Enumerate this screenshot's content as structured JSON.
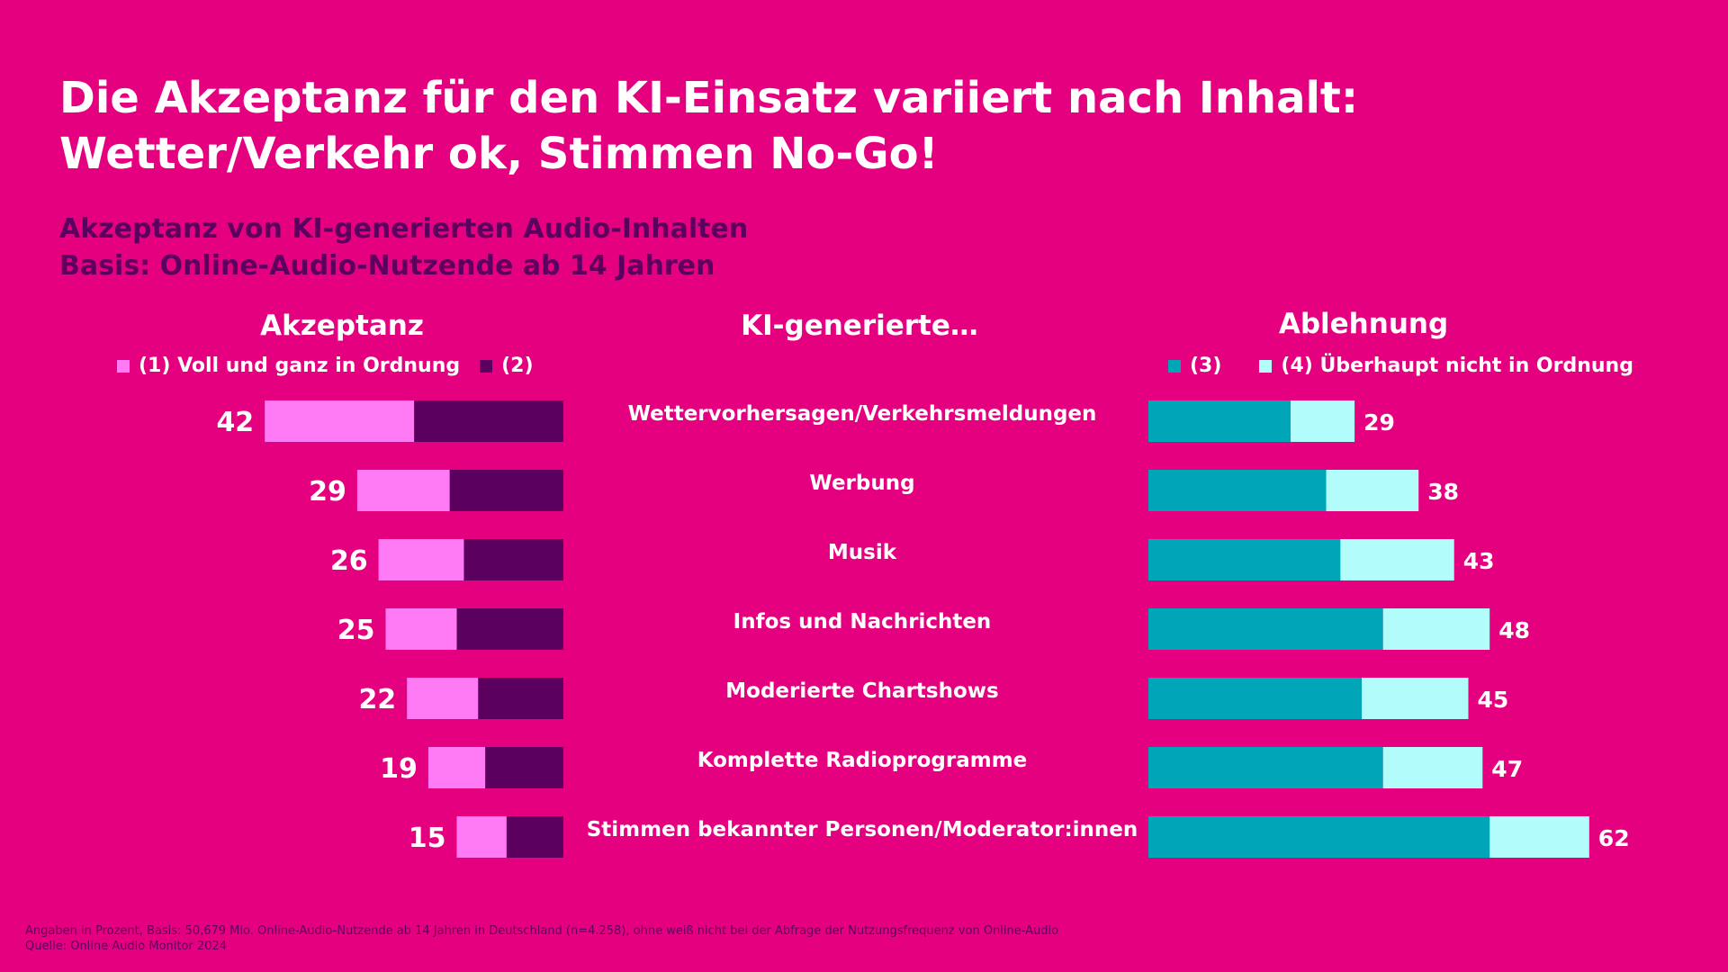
{
  "title": {
    "line1": "Die Akzeptanz für den KI-Einsatz variiert nach Inhalt:",
    "line2": "Wetter/Verkehr ok, Stimmen No-Go!"
  },
  "subtitle": {
    "line1": "Akzeptanz von KI-generierten Audio-Inhalten",
    "line2": "Basis: Online-Audio-Nutzende ab 14 Jahren"
  },
  "headings": {
    "left": "Akzeptanz",
    "center": "KI-generierte…",
    "right": "Ablehnung"
  },
  "legend": {
    "acc1": "(1) Voll und ganz in Ordnung",
    "acc2": "(2)",
    "rej3": "(3)",
    "rej4": "(4) Überhaupt nicht in Ordnung"
  },
  "colors": {
    "background": "#E4007F",
    "acc1": "#FF7BF5",
    "acc2": "#5C0060",
    "rej3": "#00A6B8",
    "rej4": "#B2FCFB",
    "subtitle": "#5C0060",
    "text": "#FFFFFF"
  },
  "chart_data": {
    "type": "bar",
    "orientation": "horizontal",
    "layout": "diverging stacked",
    "categories": [
      "Wettervorhersagen/Verkehrsmeldungen",
      "Werbung",
      "Musik",
      "Infos und Nachrichten",
      "Moderierte Chartshows",
      "Komplette Radioprogramme",
      "Stimmen bekannter Personen/Moderator:innen"
    ],
    "acceptance_totals": [
      42,
      29,
      26,
      25,
      22,
      19,
      15
    ],
    "rejection_totals": [
      29,
      38,
      43,
      48,
      45,
      47,
      62
    ],
    "series": [
      {
        "name": "(1) Voll und ganz in Ordnung",
        "side": "acceptance",
        "values": [
          21,
          13,
          12,
          10,
          10,
          8,
          7
        ]
      },
      {
        "name": "(2)",
        "side": "acceptance",
        "values": [
          21,
          16,
          14,
          15,
          12,
          11,
          8
        ]
      },
      {
        "name": "(3)",
        "side": "rejection",
        "values": [
          20,
          25,
          27,
          33,
          30,
          33,
          48
        ]
      },
      {
        "name": "(4) Überhaupt nicht in Ordnung",
        "side": "rejection",
        "values": [
          9,
          13,
          16,
          15,
          15,
          14,
          14
        ]
      }
    ]
  },
  "footnote": {
    "line1": "Angaben in Prozent, Basis: 50,679 Mio. Online-Audio-Nutzende ab 14 Jahren in Deutschland (n=4.258), ohne weiß nicht bei der Abfrage der Nutzungsfrequenz von Online-Audio",
    "line2": "Quelle: Online Audio Monitor 2024"
  }
}
